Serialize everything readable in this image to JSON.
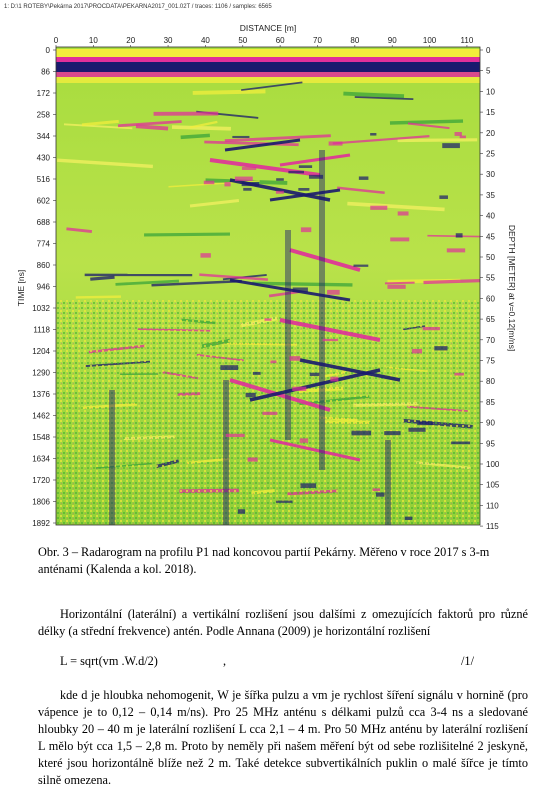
{
  "figure": {
    "header": "1: D:\\1 ROTEBY\\Pekárna 2017\\PROCDATA\\PEKARNA2017_001.02T / traces: 1106 / samples: 6565",
    "x_axis_title": "DISTANCE [m]",
    "x_ticks": [
      "0",
      "10",
      "20",
      "30",
      "40",
      "50",
      "60",
      "70",
      "80",
      "90",
      "100",
      "110"
    ],
    "y_left_title": "TIME [ns]",
    "y_left_ticks": [
      "0",
      "86",
      "172",
      "258",
      "344",
      "430",
      "516",
      "602",
      "688",
      "774",
      "860",
      "946",
      "1032",
      "1118",
      "1204",
      "1290",
      "1376",
      "1462",
      "1548",
      "1634",
      "1720",
      "1806",
      "1892"
    ],
    "y_right_title": "DEPTH [METER] at v=0.12[m/ns]",
    "y_right_ticks": [
      "0",
      "5",
      "10",
      "15",
      "20",
      "25",
      "30",
      "35",
      "40",
      "45",
      "50",
      "55",
      "60",
      "65",
      "70",
      "75",
      "80",
      "85",
      "90",
      "95",
      "100",
      "105",
      "110",
      "115"
    ],
    "colors": {
      "background_field": "#9dd63a",
      "yellow": "#f2ee3c",
      "magenta": "#e0309a",
      "navy": "#1a1a6e"
    }
  },
  "caption": "Obr. 3 – Radarogram na profilu P1 nad koncovou partií Pekárny. Měřeno v roce 2017 s 3-m anténami (Kalenda a kol. 2018).",
  "paragraph1": "Horizontální (laterální) a vertikální rozlišení jsou dalšími z omezujících faktorů pro různé délky (a střední frekvence) antén. Podle Annana (2009) je horizontální rozlišení",
  "formula": {
    "lhs": "L = sqrt(vm .W.d/2)",
    "comma": ",",
    "number": "/1/"
  },
  "paragraph2": "kde d je hloubka nehomogenit, W je šířka pulzu a vm je rychlost šíření signálu v hornině (pro vápence je to 0,12 – 0,14 m/ns). Pro 25 MHz anténu s délkami pulzů cca 3-4 ns a sledované hloubky 20 – 40 m je laterální rozlišení L cca 2,1 – 4 m. Pro 50 MHz anténu by laterální rozlišení L mělo být cca 1,5 – 2,8 m. Proto by neměly při našem měření být od sebe rozlišitelné 2 jeskyně, které jsou horizontálně blíže než 2 m. Také detekce subvertikálních puklin o malé šířce je tímto silně omezena."
}
